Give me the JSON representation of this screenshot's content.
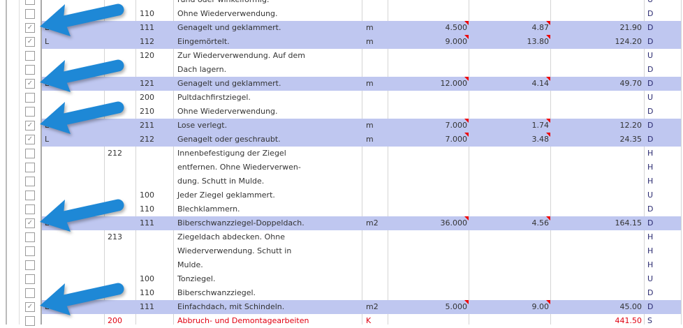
{
  "colors": {
    "highlight": "#bfc7f0",
    "arrow": "#1e88d6",
    "warning_red": "#e00010"
  },
  "rows": [
    {
      "c1": "",
      "c2": "",
      "c3": "",
      "desc": "rund oder winkelförmig.",
      "unit": "",
      "qty": "",
      "price": "",
      "total": "",
      "flag": "U",
      "checked": false,
      "hl": false
    },
    {
      "c1": "",
      "c2": "",
      "c3": "110",
      "desc": "Ohne Wiederverwendung.",
      "unit": "",
      "qty": "",
      "price": "",
      "total": "",
      "flag": "D",
      "checked": false,
      "hl": false
    },
    {
      "c1": "L",
      "c2": "",
      "c3": "111",
      "desc": "Genagelt und geklammert.",
      "unit": "m",
      "qty": "4.500",
      "price": "4.87",
      "total": "21.90",
      "flag": "D",
      "checked": true,
      "hl": true
    },
    {
      "c1": "L",
      "c2": "",
      "c3": "112",
      "desc": "Eingemörtelt.",
      "unit": "m",
      "qty": "9.000",
      "price": "13.80",
      "total": "124.20",
      "flag": "D",
      "checked": true,
      "hl": true
    },
    {
      "c1": "",
      "c2": "",
      "c3": "120",
      "desc": "Zur Wiederverwendung. Auf dem",
      "unit": "",
      "qty": "",
      "price": "",
      "total": "",
      "flag": "U",
      "checked": false,
      "hl": false
    },
    {
      "c1": "",
      "c2": "",
      "c3": "",
      "desc": "Dach lagern.",
      "unit": "",
      "qty": "",
      "price": "",
      "total": "",
      "flag": "D",
      "checked": false,
      "hl": false
    },
    {
      "c1": "L",
      "c2": "",
      "c3": "121",
      "desc": "Genagelt und geklammert.",
      "unit": "m",
      "qty": "12.000",
      "price": "4.14",
      "total": "49.70",
      "flag": "D",
      "checked": true,
      "hl": true
    },
    {
      "c1": "",
      "c2": "",
      "c3": "200",
      "desc": "Pultdachfirstziegel.",
      "unit": "",
      "qty": "",
      "price": "",
      "total": "",
      "flag": "U",
      "checked": false,
      "hl": false
    },
    {
      "c1": "",
      "c2": "",
      "c3": "210",
      "desc": "Ohne Wiederverwendung.",
      "unit": "",
      "qty": "",
      "price": "",
      "total": "",
      "flag": "D",
      "checked": false,
      "hl": false
    },
    {
      "c1": "L",
      "c2": "",
      "c3": "211",
      "desc": "Lose verlegt.",
      "unit": "m",
      "qty": "7.000",
      "price": "1.74",
      "total": "12.20",
      "flag": "D",
      "checked": true,
      "hl": true
    },
    {
      "c1": "L",
      "c2": "",
      "c3": "212",
      "desc": "Genagelt oder geschraubt.",
      "unit": "m",
      "qty": "7.000",
      "price": "3.48",
      "total": "24.35",
      "flag": "D",
      "checked": true,
      "hl": true
    },
    {
      "c1": "",
      "c2": "212",
      "c3": "",
      "desc": "Innenbefestigung der Ziegel",
      "unit": "",
      "qty": "",
      "price": "",
      "total": "",
      "flag": "H",
      "checked": false,
      "hl": false
    },
    {
      "c1": "",
      "c2": "",
      "c3": "",
      "desc": "entfernen. Ohne Wiederverwen-",
      "unit": "",
      "qty": "",
      "price": "",
      "total": "",
      "flag": "H",
      "checked": false,
      "hl": false
    },
    {
      "c1": "",
      "c2": "",
      "c3": "",
      "desc": "dung. Schutt in Mulde.",
      "unit": "",
      "qty": "",
      "price": "",
      "total": "",
      "flag": "H",
      "checked": false,
      "hl": false
    },
    {
      "c1": "",
      "c2": "",
      "c3": "100",
      "desc": "Jeder Ziegel geklammert.",
      "unit": "",
      "qty": "",
      "price": "",
      "total": "",
      "flag": "U",
      "checked": false,
      "hl": false
    },
    {
      "c1": "",
      "c2": "",
      "c3": "110",
      "desc": "Blechklammern.",
      "unit": "",
      "qty": "",
      "price": "",
      "total": "",
      "flag": "D",
      "checked": false,
      "hl": false
    },
    {
      "c1": "L",
      "c2": "",
      "c3": "111",
      "desc": "Biberschwanzziegel-Doppeldach.",
      "unit": "m2",
      "qty": "36.000",
      "price": "4.56",
      "total": "164.15",
      "flag": "D",
      "checked": true,
      "hl": true
    },
    {
      "c1": "",
      "c2": "213",
      "c3": "",
      "desc": "Ziegeldach abdecken. Ohne",
      "unit": "",
      "qty": "",
      "price": "",
      "total": "",
      "flag": "H",
      "checked": false,
      "hl": false
    },
    {
      "c1": "",
      "c2": "",
      "c3": "",
      "desc": "Wiederverwendung. Schutt in",
      "unit": "",
      "qty": "",
      "price": "",
      "total": "",
      "flag": "H",
      "checked": false,
      "hl": false
    },
    {
      "c1": "",
      "c2": "",
      "c3": "",
      "desc": "Mulde.",
      "unit": "",
      "qty": "",
      "price": "",
      "total": "",
      "flag": "H",
      "checked": false,
      "hl": false
    },
    {
      "c1": "",
      "c2": "",
      "c3": "100",
      "desc": "Tonziegel.",
      "unit": "",
      "qty": "",
      "price": "",
      "total": "",
      "flag": "U",
      "checked": false,
      "hl": false
    },
    {
      "c1": "",
      "c2": "",
      "c3": "110",
      "desc": "Biberschwanzziegel.",
      "unit": "",
      "qty": "",
      "price": "",
      "total": "",
      "flag": "D",
      "checked": false,
      "hl": false
    },
    {
      "c1": "L",
      "c2": "",
      "c3": "111",
      "desc": "Einfachdach, mit Schindeln.",
      "unit": "m2",
      "qty": "5.000",
      "price": "9.00",
      "total": "45.00",
      "flag": "D",
      "checked": true,
      "hl": true
    },
    {
      "c1": "",
      "c2": "200",
      "c3": "",
      "desc": "Abbruch- und Demontagearbeiten",
      "unit": "K",
      "qty": "",
      "price": "",
      "total": "441.50",
      "flag": "S",
      "checked": false,
      "hl": false,
      "red": true
    }
  ],
  "annotation_arrows_at_rows": [
    2,
    6,
    9,
    16,
    22
  ]
}
